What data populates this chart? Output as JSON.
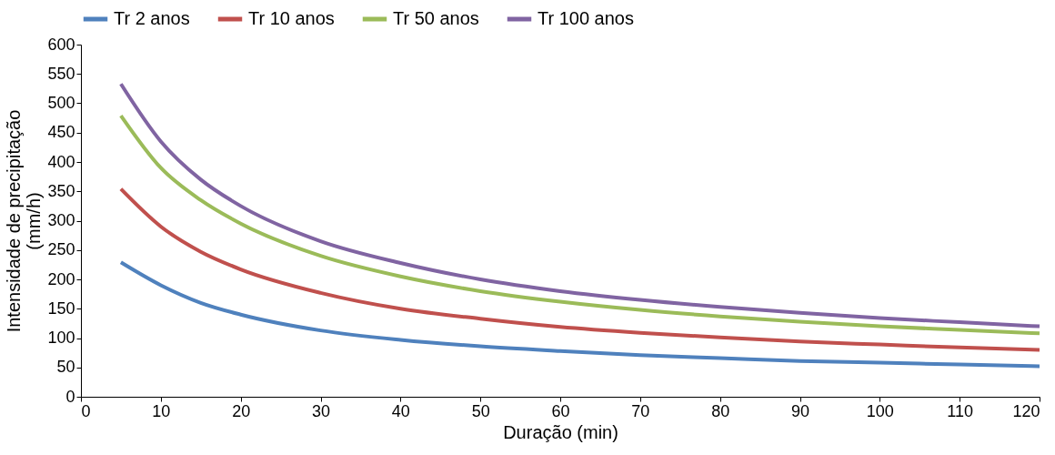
{
  "chart_data": {
    "type": "line",
    "xlabel": "Duração (min)",
    "ylabel": "Intensidade de precipitação (mm/h)",
    "x": [
      5,
      10,
      15,
      20,
      30,
      40,
      50,
      60,
      70,
      80,
      90,
      100,
      110,
      120
    ],
    "series": [
      {
        "name": "Tr 2 anos",
        "color": "#4f81bd",
        "values": [
          229,
          190,
          160,
          140,
          113,
          97,
          86,
          78,
          71,
          66,
          61,
          58,
          55,
          52
        ]
      },
      {
        "name": "Tr 10 anos",
        "color": "#c0504d",
        "values": [
          354,
          290,
          247,
          217,
          177,
          150,
          133,
          119,
          109,
          101,
          94,
          89,
          84,
          80
        ]
      },
      {
        "name": "Tr 50 anos",
        "color": "#9bbb59",
        "values": [
          479,
          390,
          335,
          295,
          240,
          205,
          180,
          162,
          148,
          137,
          128,
          120,
          114,
          108
        ]
      },
      {
        "name": "Tr 100 anos",
        "color": "#8064a2",
        "values": [
          533,
          435,
          370,
          325,
          265,
          228,
          200,
          180,
          165,
          153,
          143,
          134,
          127,
          120
        ]
      }
    ],
    "xlim": [
      0,
      120
    ],
    "xticks": [
      0,
      10,
      20,
      30,
      40,
      50,
      60,
      70,
      80,
      90,
      100,
      110,
      120
    ],
    "ylim": [
      0,
      600
    ],
    "yticks": [
      0,
      50,
      100,
      150,
      200,
      250,
      300,
      350,
      400,
      450,
      500,
      550,
      600
    ],
    "grid": false,
    "legend": "top",
    "marker": "none",
    "line_style": "solid"
  }
}
